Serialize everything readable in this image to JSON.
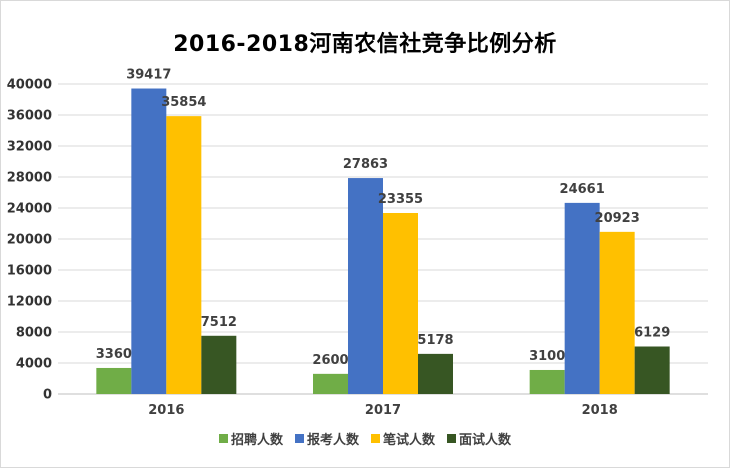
{
  "chart_data": {
    "type": "bar",
    "title": "2016-2018河南农信社竞争比例分析",
    "categories": [
      "2016",
      "2017",
      "2018"
    ],
    "series": [
      {
        "name": "招聘人数",
        "color": "#70ad47",
        "values": [
          3360,
          2600,
          3100
        ]
      },
      {
        "name": "报考人数",
        "color": "#4472c4",
        "values": [
          39417,
          27863,
          24661
        ]
      },
      {
        "name": "笔试人数",
        "color": "#ffc000",
        "values": [
          35854,
          23355,
          20923
        ]
      },
      {
        "name": "面试人数",
        "color": "#375623",
        "values": [
          7512,
          5178,
          6129
        ]
      }
    ],
    "yticks": [
      "0",
      "4000",
      "8000",
      "12000",
      "16000",
      "20000",
      "24000",
      "28000",
      "32000",
      "36000",
      "40000"
    ],
    "ylim": [
      0,
      40000
    ],
    "grid": true,
    "legend": "bottom"
  }
}
